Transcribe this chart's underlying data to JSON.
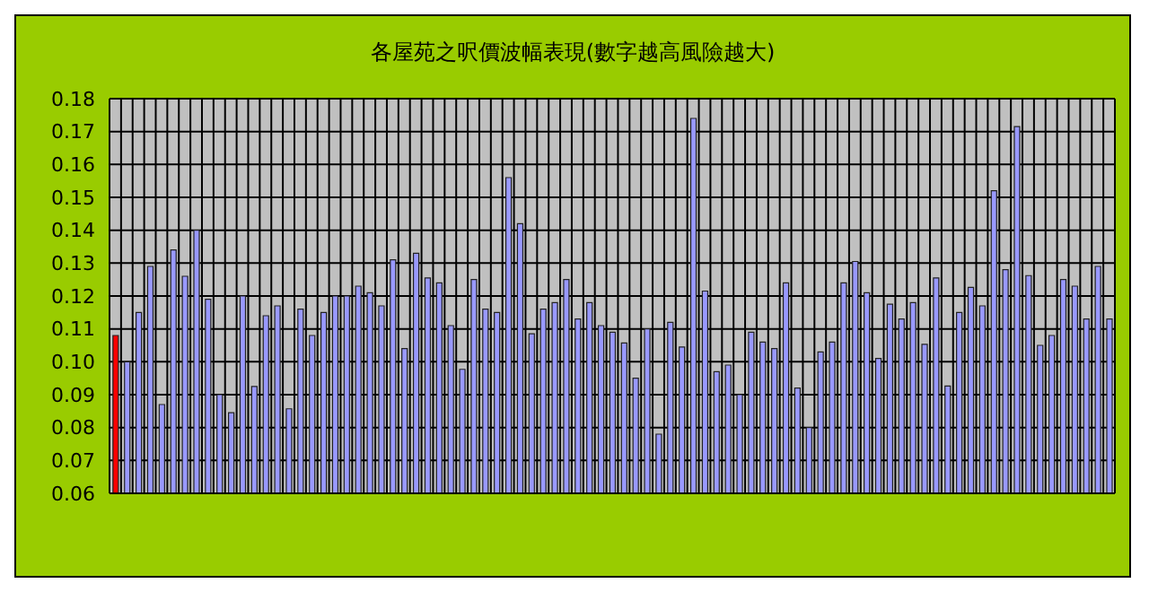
{
  "chart_data": {
    "type": "bar",
    "title": "各屋苑之呎價波幅表現(數字越高風險越大)",
    "categories": [
      null,
      null,
      null,
      null,
      null,
      null,
      null,
      null,
      null,
      null,
      null,
      null,
      null,
      null,
      null,
      null,
      null,
      null,
      null,
      null,
      null,
      null,
      null,
      null,
      null,
      null,
      null,
      null,
      null,
      null,
      null,
      null,
      null,
      null,
      null,
      null,
      null,
      null,
      null,
      null,
      null,
      null,
      null,
      null,
      null,
      null,
      null,
      null,
      null,
      null,
      null,
      null,
      null,
      null,
      null,
      null,
      null,
      null,
      null,
      null,
      null,
      null,
      null,
      null,
      null,
      null,
      null,
      null,
      null,
      null,
      null,
      null,
      null,
      null,
      null,
      null,
      null,
      null,
      null,
      null,
      null,
      null,
      null,
      null,
      null,
      null,
      null
    ],
    "values": [
      0.108,
      0.1,
      0.115,
      0.129,
      0.087,
      0.134,
      0.126,
      0.14,
      0.119,
      0.09,
      0.0845,
      0.12,
      0.0925,
      0.114,
      0.117,
      0.0857,
      0.116,
      0.108,
      0.115,
      0.12,
      0.12,
      0.123,
      0.121,
      0.117,
      0.131,
      0.104,
      0.133,
      0.1255,
      0.124,
      0.111,
      0.0977,
      0.125,
      0.116,
      0.115,
      0.156,
      0.142,
      0.1085,
      0.116,
      0.118,
      0.125,
      0.113,
      0.118,
      0.111,
      0.109,
      0.1057,
      0.095,
      0.11,
      0.078,
      0.112,
      0.1045,
      0.174,
      0.1215,
      0.097,
      0.099,
      0.09,
      0.109,
      0.106,
      0.104,
      0.124,
      0.092,
      0.08,
      0.103,
      0.106,
      0.124,
      0.1305,
      0.121,
      0.101,
      0.1175,
      0.113,
      0.118,
      0.1053,
      0.1255,
      0.0926,
      0.115,
      0.1226,
      0.117,
      0.152,
      0.128,
      0.1715,
      0.1262,
      0.105,
      0.108,
      0.125,
      0.123,
      0.113,
      0.129,
      0.113
    ],
    "colors": [
      "#ff0000",
      "#9999ff",
      "#9999ff",
      "#9999ff",
      "#9999ff",
      "#9999ff",
      "#9999ff",
      "#9999ff",
      "#9999ff",
      "#9999ff",
      "#9999ff",
      "#9999ff",
      "#9999ff",
      "#9999ff",
      "#9999ff",
      "#9999ff",
      "#9999ff",
      "#9999ff",
      "#9999ff",
      "#9999ff",
      "#9999ff",
      "#9999ff",
      "#9999ff",
      "#9999ff",
      "#9999ff",
      "#9999ff",
      "#9999ff",
      "#9999ff",
      "#9999ff",
      "#9999ff",
      "#9999ff",
      "#9999ff",
      "#9999ff",
      "#9999ff",
      "#9999ff",
      "#9999ff",
      "#9999ff",
      "#9999ff",
      "#9999ff",
      "#9999ff",
      "#9999ff",
      "#9999ff",
      "#9999ff",
      "#9999ff",
      "#9999ff",
      "#9999ff",
      "#9999ff",
      "#9999ff",
      "#9999ff",
      "#9999ff",
      "#9999ff",
      "#9999ff",
      "#9999ff",
      "#9999ff",
      "#9999ff",
      "#9999ff",
      "#9999ff",
      "#9999ff",
      "#9999ff",
      "#9999ff",
      "#9999ff",
      "#9999ff",
      "#9999ff",
      "#9999ff",
      "#9999ff",
      "#9999ff",
      "#9999ff",
      "#9999ff",
      "#9999ff",
      "#9999ff",
      "#9999ff",
      "#9999ff",
      "#9999ff",
      "#9999ff",
      "#9999ff",
      "#9999ff",
      "#9999ff",
      "#9999ff",
      "#9999ff",
      "#9999ff",
      "#9999ff",
      "#9999ff",
      "#9999ff",
      "#9999ff",
      "#9999ff",
      "#9999ff",
      "#9999ff"
    ],
    "ylim": [
      0.06,
      0.18
    ],
    "yticks": [
      {
        "value": 0.06,
        "label": "0.06"
      },
      {
        "value": 0.07,
        "label": "0.07"
      },
      {
        "value": 0.08,
        "label": "0.08"
      },
      {
        "value": 0.09,
        "label": "0.09"
      },
      {
        "value": 0.1,
        "label": "0.10"
      },
      {
        "value": 0.11,
        "label": "0.11"
      },
      {
        "value": 0.12,
        "label": "0.12"
      },
      {
        "value": 0.13,
        "label": "0.13"
      },
      {
        "value": 0.14,
        "label": "0.14"
      },
      {
        "value": 0.15,
        "label": "0.15"
      },
      {
        "value": 0.16,
        "label": "0.16"
      },
      {
        "value": 0.17,
        "label": "0.17"
      },
      {
        "value": 0.18,
        "label": "0.18"
      }
    ],
    "grid": true
  }
}
